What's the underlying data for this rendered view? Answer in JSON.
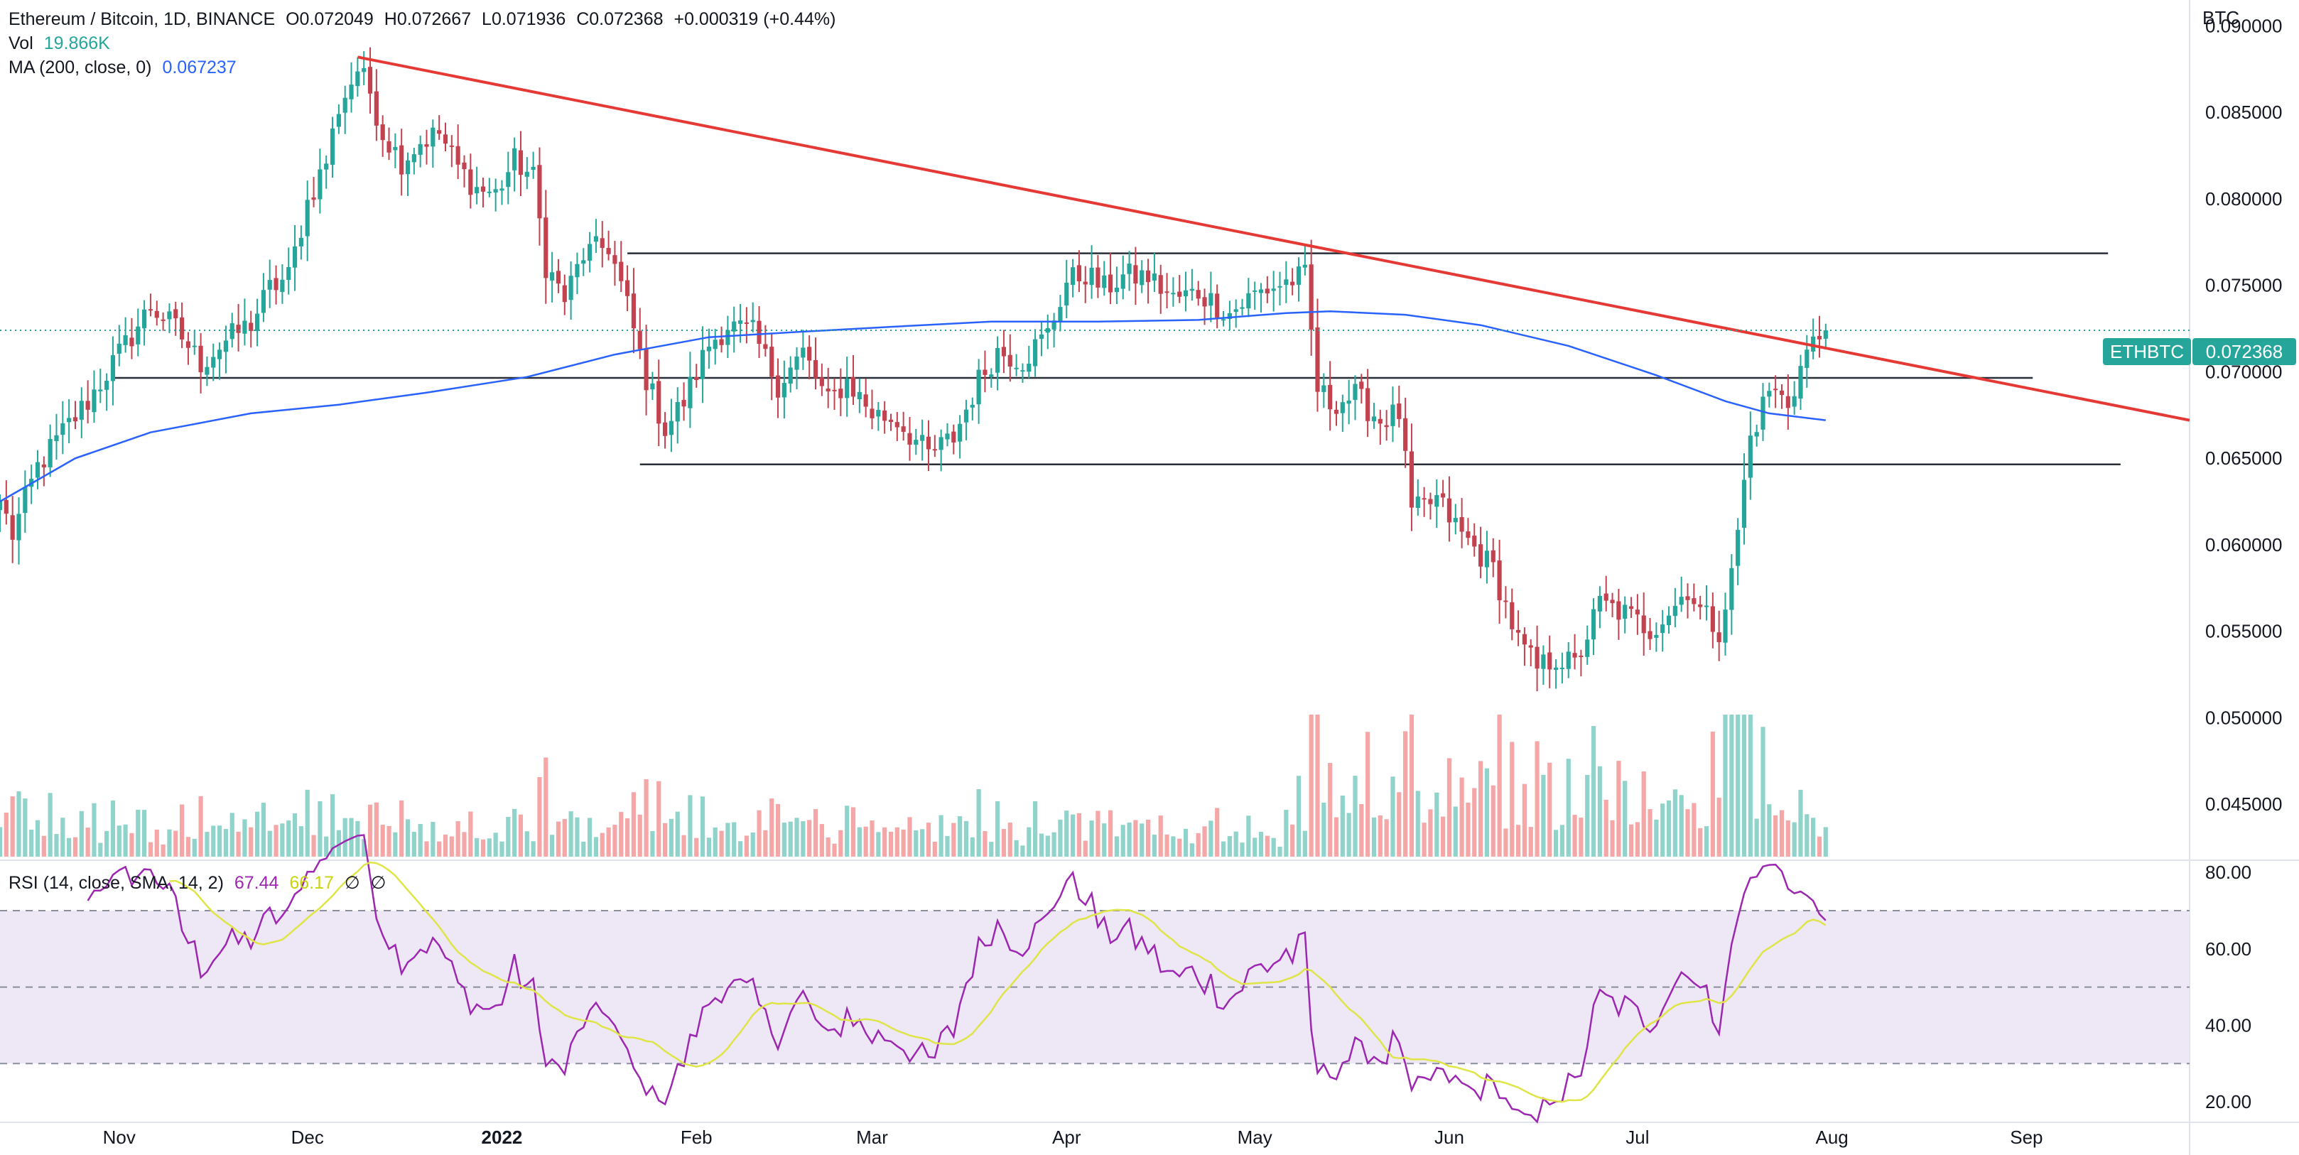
{
  "colors": {
    "up": "#26a69a",
    "down": "#c2434f",
    "vol_up": "#8fd3cb",
    "vol_down": "#f5a6a6",
    "ma": "#2962ff",
    "trendline": "#e53935",
    "level": "#2a2e39",
    "rsi": "#9c27b0",
    "rsi_ma": "#dfe546",
    "rsi_band": "#ede7f6"
  },
  "legend": {
    "main": {
      "symbol": "Ethereum / Bitcoin, 1D, BINANCE",
      "open": "O0.072049",
      "high": "H0.072667",
      "low": "L0.071936",
      "close": "C0.072368",
      "change": "+0.000319 (+0.44%)"
    },
    "vol": {
      "label": "Vol",
      "value": "19.866K"
    },
    "ma": {
      "label": "MA (200, close, 0)",
      "value": "0.067237"
    },
    "rsi": {
      "label": "RSI (14, close, SMA, 14, 2)",
      "value": "67.44",
      "ma_value": "66.17",
      "extra1": "∅",
      "extra2": "∅"
    }
  },
  "badge": {
    "symbol": "ETHBTC",
    "price": "0.072368"
  },
  "chart_data": [
    {
      "type": "candlestick",
      "currency_label": "BTC",
      "price_axis": {
        "ticks": [
          "0.090000",
          "0.085000",
          "0.080000",
          "0.075000",
          "0.070000",
          "0.065000",
          "0.060000",
          "0.055000",
          "0.050000",
          "0.045000"
        ],
        "ylim": [
          0.0418,
          0.0915
        ]
      },
      "time_axis": {
        "labels": [
          {
            "label": "Nov",
            "date": "2021-11-01"
          },
          {
            "label": "Dec",
            "date": "2021-12-01"
          },
          {
            "label": "2022",
            "date": "2022-01-01"
          },
          {
            "label": "Feb",
            "date": "2022-02-01"
          },
          {
            "label": "Mar",
            "date": "2022-03-01"
          },
          {
            "label": "Apr",
            "date": "2022-04-01"
          },
          {
            "label": "May",
            "date": "2022-05-01"
          },
          {
            "label": "Jun",
            "date": "2022-06-01"
          },
          {
            "label": "Jul",
            "date": "2022-07-01"
          },
          {
            "label": "Aug",
            "date": "2022-08-01"
          },
          {
            "label": "Sep",
            "date": "2022-09-01"
          }
        ],
        "range": [
          "2021-10-13",
          "2022-09-27"
        ]
      },
      "close_anchors": [
        [
          "2021-10-13",
          0.0625
        ],
        [
          "2021-10-15",
          0.0606
        ],
        [
          "2021-10-19",
          0.0645
        ],
        [
          "2021-10-23",
          0.0665
        ],
        [
          "2021-10-27",
          0.0683
        ],
        [
          "2021-10-31",
          0.0705
        ],
        [
          "2021-11-03",
          0.0721
        ],
        [
          "2021-11-06",
          0.0738
        ],
        [
          "2021-11-10",
          0.0725
        ],
        [
          "2021-11-14",
          0.0705
        ],
        [
          "2021-11-18",
          0.0718
        ],
        [
          "2021-11-22",
          0.0728
        ],
        [
          "2021-11-25",
          0.0748
        ],
        [
          "2021-11-28",
          0.0755
        ],
        [
          "2021-12-01",
          0.0798
        ],
        [
          "2021-12-04",
          0.0822
        ],
        [
          "2021-12-06",
          0.0853
        ],
        [
          "2021-12-09",
          0.0875
        ],
        [
          "2021-12-11",
          0.0862
        ],
        [
          "2021-12-13",
          0.0838
        ],
        [
          "2021-12-16",
          0.0822
        ],
        [
          "2021-12-19",
          0.0833
        ],
        [
          "2021-12-22",
          0.0838
        ],
        [
          "2021-12-25",
          0.0818
        ],
        [
          "2021-12-28",
          0.0806
        ],
        [
          "2021-12-31",
          0.0803
        ],
        [
          "2022-01-03",
          0.0822
        ],
        [
          "2022-01-06",
          0.0812
        ],
        [
          "2022-01-08",
          0.0762
        ],
        [
          "2022-01-11",
          0.0742
        ],
        [
          "2022-01-14",
          0.0768
        ],
        [
          "2022-01-18",
          0.0773
        ],
        [
          "2022-01-21",
          0.0738
        ],
        [
          "2022-01-24",
          0.0696
        ],
        [
          "2022-01-27",
          0.0667
        ],
        [
          "2022-01-30",
          0.0683
        ],
        [
          "2022-02-03",
          0.0716
        ],
        [
          "2022-02-06",
          0.0727
        ],
        [
          "2022-02-10",
          0.0722
        ],
        [
          "2022-02-14",
          0.0693
        ],
        [
          "2022-02-18",
          0.0711
        ],
        [
          "2022-02-22",
          0.0682
        ],
        [
          "2022-02-25",
          0.0695
        ],
        [
          "2022-03-01",
          0.0676
        ],
        [
          "2022-03-05",
          0.0672
        ],
        [
          "2022-03-10",
          0.0652
        ],
        [
          "2022-03-14",
          0.0662
        ],
        [
          "2022-03-18",
          0.0695
        ],
        [
          "2022-03-21",
          0.0712
        ],
        [
          "2022-03-25",
          0.0707
        ],
        [
          "2022-03-29",
          0.0722
        ],
        [
          "2022-04-01",
          0.0752
        ],
        [
          "2022-04-04",
          0.0757
        ],
        [
          "2022-04-07",
          0.0748
        ],
        [
          "2022-04-10",
          0.0755
        ],
        [
          "2022-04-14",
          0.0755
        ],
        [
          "2022-04-18",
          0.0742
        ],
        [
          "2022-04-22",
          0.0746
        ],
        [
          "2022-04-27",
          0.0734
        ],
        [
          "2022-05-01",
          0.0745
        ],
        [
          "2022-05-06",
          0.0752
        ],
        [
          "2022-05-09",
          0.0755
        ],
        [
          "2022-05-11",
          0.069
        ],
        [
          "2022-05-13",
          0.0682
        ],
        [
          "2022-05-17",
          0.0686
        ],
        [
          "2022-05-21",
          0.0672
        ],
        [
          "2022-05-24",
          0.0676
        ],
        [
          "2022-05-26",
          0.0618
        ],
        [
          "2022-05-30",
          0.0626
        ],
        [
          "2022-06-03",
          0.0606
        ],
        [
          "2022-06-08",
          0.0586
        ],
        [
          "2022-06-12",
          0.0544
        ],
        [
          "2022-06-15",
          0.0528
        ],
        [
          "2022-06-18",
          0.0535
        ],
        [
          "2022-06-21",
          0.053
        ],
        [
          "2022-06-25",
          0.0566
        ],
        [
          "2022-06-29",
          0.056
        ],
        [
          "2022-07-03",
          0.0551
        ],
        [
          "2022-07-07",
          0.0565
        ],
        [
          "2022-07-09",
          0.0575
        ],
        [
          "2022-07-11",
          0.0562
        ],
        [
          "2022-07-14",
          0.0551
        ],
        [
          "2022-07-16",
          0.0582
        ],
        [
          "2022-07-19",
          0.0662
        ],
        [
          "2022-07-22",
          0.069
        ],
        [
          "2022-07-25",
          0.0682
        ],
        [
          "2022-07-28",
          0.0712
        ],
        [
          "2022-07-31",
          0.0724
        ]
      ],
      "series": [
        {
          "name": "MA (200, close, 0)",
          "x": [
            "2021-10-13",
            "2021-10-25",
            "2021-11-06",
            "2021-11-22",
            "2021-12-06",
            "2021-12-20",
            "2022-01-05",
            "2022-01-19",
            "2022-02-03",
            "2022-02-17",
            "2022-03-04",
            "2022-03-20",
            "2022-04-06",
            "2022-04-22",
            "2022-05-06",
            "2022-05-13",
            "2022-05-25",
            "2022-06-06",
            "2022-06-20",
            "2022-07-04",
            "2022-07-15",
            "2022-07-22",
            "2022-07-31"
          ],
          "y": [
            0.0625,
            0.065,
            0.0665,
            0.0676,
            0.0681,
            0.0688,
            0.0697,
            0.071,
            0.072,
            0.0723,
            0.0726,
            0.0729,
            0.0729,
            0.073,
            0.0734,
            0.0735,
            0.0733,
            0.0727,
            0.0715,
            0.0698,
            0.0683,
            0.0676,
            0.0672
          ]
        }
      ],
      "levels": [
        {
          "y": 0.07685,
          "x0": "2022-01-21",
          "x1": "2022-09-14"
        },
        {
          "y": 0.06965,
          "x0": "2021-10-31",
          "x1": "2022-09-02"
        },
        {
          "y": 0.06465,
          "x0": "2022-01-23",
          "x1": "2022-09-16"
        }
      ],
      "trendline": {
        "x0": "2021-12-09",
        "y0": 0.0882,
        "x1": "2022-09-27",
        "y1": 0.0672
      },
      "volume": {
        "value": "19.866K"
      }
    },
    {
      "type": "line",
      "ylim": [
        15,
        83
      ],
      "ticks": [
        "80.00",
        "60.00",
        "40.00",
        "20.00"
      ],
      "bands": {
        "upper": 70,
        "middle": 50,
        "lower": 30
      },
      "series": [
        {
          "name": "RSI (14, close, SMA, 14, 2)",
          "last": 67.44
        },
        {
          "name": "SMA 14",
          "last": 66.17
        }
      ]
    }
  ]
}
